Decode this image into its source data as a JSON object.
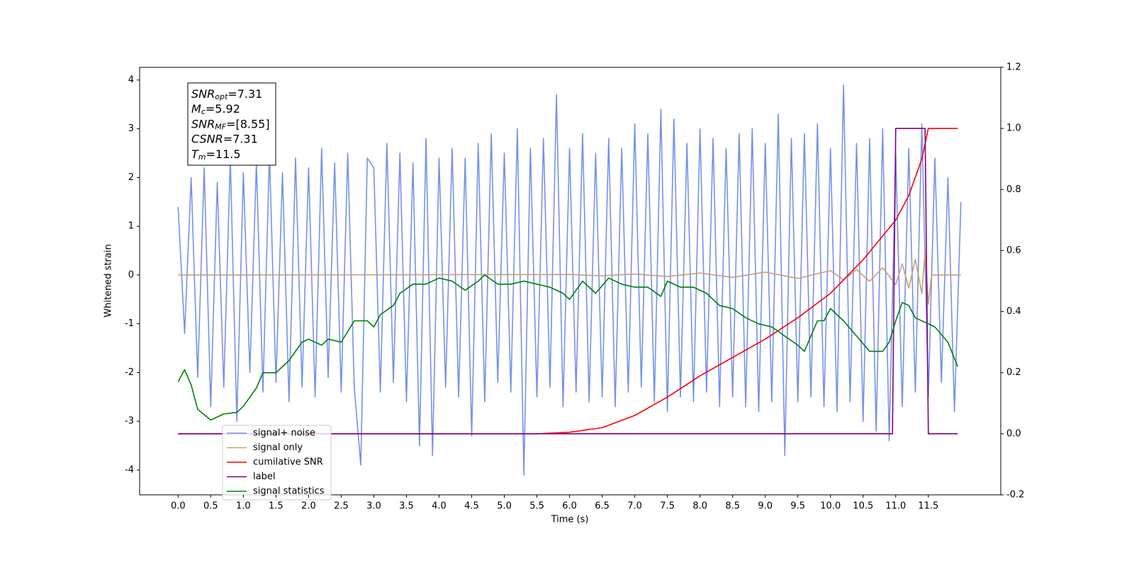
{
  "chart_data": {
    "type": "line",
    "xlabel": "Time (s)",
    "ylabel": "Whitened strain",
    "xlim": [
      -0.59,
      12.61
    ],
    "ylim": [
      -4.51,
      4.26
    ],
    "y2lim": [
      -0.2,
      1.2
    ],
    "xticks": [
      {
        "value": 0,
        "label": "0.0"
      },
      0.5,
      {
        "value": 1,
        "label": "1.0"
      },
      1.5,
      {
        "value": 2,
        "label": "2.0"
      },
      2.5,
      {
        "value": 3,
        "label": "3.0"
      },
      3.5,
      {
        "value": 4,
        "label": "4.0"
      },
      4.5,
      {
        "value": 5,
        "label": "5.0"
      },
      5.5,
      {
        "value": 6,
        "label": "6.0"
      },
      6.5,
      {
        "value": 7,
        "label": "7.0"
      },
      7.5,
      {
        "value": 8,
        "label": "8.0"
      },
      8.5,
      {
        "value": 9,
        "label": "9.0"
      },
      9.5,
      {
        "value": 10,
        "label": "10.0"
      },
      10.5,
      {
        "value": 11,
        "label": "11.0"
      },
      11.5
    ],
    "yticks": [
      -4,
      -3,
      -2,
      -1,
      0,
      1,
      2,
      3,
      4
    ],
    "y2ticks": [
      -0.2,
      {
        "value": 0,
        "label": "0.0"
      },
      0.2,
      0.4,
      0.6,
      0.8,
      {
        "value": 1,
        "label": "1.0"
      },
      1.2
    ],
    "annotations": [
      {
        "base": "SNR",
        "sub": "opt",
        "text": "=7.31"
      },
      {
        "base": "M",
        "sub": "c",
        "text": "=5.92"
      },
      {
        "base": "SNR",
        "sub": "MF",
        "text": "=[8.55]"
      },
      {
        "base": "CSNR",
        "sub": "",
        "text": "=7.31"
      },
      {
        "base": "T",
        "sub": "m",
        "text": "=11.5"
      }
    ],
    "series": [
      {
        "name": "signal+ noise",
        "color": "#7592e8",
        "axis": "y",
        "x": [
          0.0,
          0.1,
          0.2,
          0.3,
          0.4,
          0.5,
          0.6,
          0.7,
          0.8,
          0.9,
          1.0,
          1.1,
          1.2,
          1.3,
          1.4,
          1.5,
          1.6,
          1.7,
          1.8,
          1.9,
          2.0,
          2.1,
          2.2,
          2.3,
          2.4,
          2.5,
          2.6,
          2.7,
          2.8,
          2.9,
          3.0,
          3.1,
          3.2,
          3.3,
          3.4,
          3.5,
          3.6,
          3.7,
          3.8,
          3.9,
          4.0,
          4.1,
          4.2,
          4.3,
          4.4,
          4.5,
          4.6,
          4.7,
          4.8,
          4.9,
          5.0,
          5.1,
          5.2,
          5.3,
          5.4,
          5.5,
          5.6,
          5.7,
          5.8,
          5.9,
          6.0,
          6.1,
          6.2,
          6.3,
          6.4,
          6.5,
          6.6,
          6.7,
          6.8,
          6.9,
          7.0,
          7.1,
          7.2,
          7.3,
          7.4,
          7.5,
          7.6,
          7.7,
          7.8,
          7.9,
          8.0,
          8.1,
          8.2,
          8.3,
          8.4,
          8.5,
          8.6,
          8.7,
          8.8,
          8.9,
          9.0,
          9.1,
          9.2,
          9.3,
          9.4,
          9.5,
          9.6,
          9.7,
          9.8,
          9.9,
          10.0,
          10.1,
          10.2,
          10.3,
          10.4,
          10.5,
          10.6,
          10.7,
          10.8,
          10.9,
          11.0,
          11.1,
          11.2,
          11.3,
          11.4,
          11.5,
          11.6,
          11.7,
          11.8,
          11.9,
          12.0
        ],
        "values": [
          1.4,
          -1.2,
          2.0,
          -2.1,
          2.2,
          -2.7,
          1.9,
          -2.3,
          2.4,
          -3.0,
          2.1,
          -2.0,
          2.3,
          -2.4,
          2.5,
          -2.2,
          2.1,
          -2.6,
          2.4,
          -2.3,
          2.2,
          -2.5,
          2.6,
          -2.1,
          2.3,
          -2.4,
          2.5,
          -2.3,
          -3.9,
          2.4,
          2.2,
          -2.4,
          2.7,
          -2.2,
          2.5,
          -2.6,
          2.3,
          -3.5,
          2.8,
          -3.7,
          2.4,
          -2.3,
          2.6,
          -2.5,
          2.4,
          -3.3,
          2.7,
          -2.6,
          2.9,
          -2.2,
          2.5,
          -2.4,
          3.0,
          -4.1,
          2.6,
          -2.5,
          2.8,
          -2.3,
          3.7,
          -2.7,
          2.6,
          -2.4,
          2.9,
          -2.6,
          2.5,
          -2.5,
          2.8,
          -2.7,
          2.6,
          -2.4,
          3.1,
          -2.3,
          2.9,
          -2.6,
          3.4,
          -2.8,
          3.2,
          -2.5,
          2.7,
          -2.6,
          3.0,
          -2.4,
          2.8,
          -2.7,
          2.6,
          -2.5,
          2.9,
          -2.7,
          3.0,
          -2.8,
          2.7,
          -2.6,
          3.3,
          -3.7,
          2.8,
          -2.6,
          2.9,
          -2.5,
          3.1,
          -2.7,
          2.6,
          -2.8,
          3.9,
          -2.6,
          2.7,
          -3.0,
          2.8,
          -3.2,
          3.0,
          -3.4,
          2.5,
          -2.7,
          2.6,
          -2.4,
          3.1,
          -2.5,
          2.4,
          -2.2,
          2.0,
          -2.8,
          1.5
        ]
      },
      {
        "name": "signal only",
        "color": "#c8a070",
        "axis": "y",
        "x": [
          0.0,
          6.0,
          6.5,
          7.0,
          7.5,
          8.0,
          8.5,
          9.0,
          9.5,
          10.0,
          10.2,
          10.4,
          10.6,
          10.8,
          11.0,
          11.1,
          11.2,
          11.3,
          11.4,
          11.45,
          11.5,
          11.55,
          12.0
        ],
        "values": [
          0,
          0.01,
          -0.015,
          0.02,
          -0.03,
          0.04,
          -0.05,
          0.06,
          -0.07,
          0.09,
          -0.1,
          0.11,
          -0.13,
          0.15,
          -0.2,
          0.23,
          -0.27,
          0.32,
          -0.38,
          0.5,
          -0.6,
          0,
          0
        ]
      },
      {
        "name": "cumilative SNR",
        "color": "red",
        "axis": "y2",
        "x": [
          0,
          5.5,
          6.0,
          6.5,
          7.0,
          7.5,
          8.0,
          8.5,
          9.0,
          9.5,
          10.0,
          10.5,
          11.0,
          11.2,
          11.4,
          11.5,
          11.95
        ],
        "values": [
          0,
          0,
          0.005,
          0.02,
          0.06,
          0.12,
          0.19,
          0.25,
          0.31,
          0.38,
          0.46,
          0.57,
          0.7,
          0.78,
          0.9,
          1.0,
          1.0
        ]
      },
      {
        "name": "label",
        "color": "purple",
        "axis": "y2",
        "x": [
          0,
          10.95,
          11.0,
          11.45,
          11.5,
          11.95
        ],
        "values": [
          0,
          0,
          1,
          1,
          0,
          0
        ]
      },
      {
        "name": "signal statistics",
        "color": "green",
        "axis": "y2",
        "x": [
          0,
          0.1,
          0.2,
          0.3,
          0.5,
          0.7,
          0.9,
          1.0,
          1.2,
          1.3,
          1.5,
          1.7,
          1.9,
          2.0,
          2.2,
          2.3,
          2.5,
          2.7,
          2.9,
          3.0,
          3.1,
          3.3,
          3.4,
          3.6,
          3.8,
          4.0,
          4.2,
          4.4,
          4.6,
          4.7,
          4.9,
          5.1,
          5.3,
          5.5,
          5.7,
          5.9,
          6.0,
          6.2,
          6.4,
          6.6,
          6.8,
          7.0,
          7.2,
          7.4,
          7.5,
          7.7,
          7.9,
          8.1,
          8.3,
          8.5,
          8.7,
          8.9,
          9.1,
          9.3,
          9.5,
          9.6,
          9.7,
          9.8,
          9.9,
          10.0,
          10.2,
          10.4,
          10.6,
          10.8,
          10.9,
          11.0,
          11.1,
          11.2,
          11.3,
          11.5,
          11.6,
          11.8,
          11.95
        ],
        "values": [
          0.17,
          0.21,
          0.16,
          0.08,
          0.045,
          0.065,
          0.07,
          0.09,
          0.15,
          0.2,
          0.2,
          0.24,
          0.3,
          0.31,
          0.29,
          0.31,
          0.3,
          0.37,
          0.37,
          0.35,
          0.39,
          0.42,
          0.46,
          0.49,
          0.49,
          0.51,
          0.5,
          0.47,
          0.5,
          0.52,
          0.49,
          0.49,
          0.5,
          0.49,
          0.48,
          0.46,
          0.44,
          0.5,
          0.46,
          0.51,
          0.49,
          0.48,
          0.48,
          0.45,
          0.5,
          0.48,
          0.48,
          0.46,
          0.42,
          0.41,
          0.38,
          0.36,
          0.35,
          0.32,
          0.29,
          0.27,
          0.32,
          0.37,
          0.37,
          0.41,
          0.37,
          0.32,
          0.27,
          0.27,
          0.3,
          0.37,
          0.43,
          0.42,
          0.38,
          0.36,
          0.35,
          0.3,
          0.22
        ]
      }
    ]
  }
}
